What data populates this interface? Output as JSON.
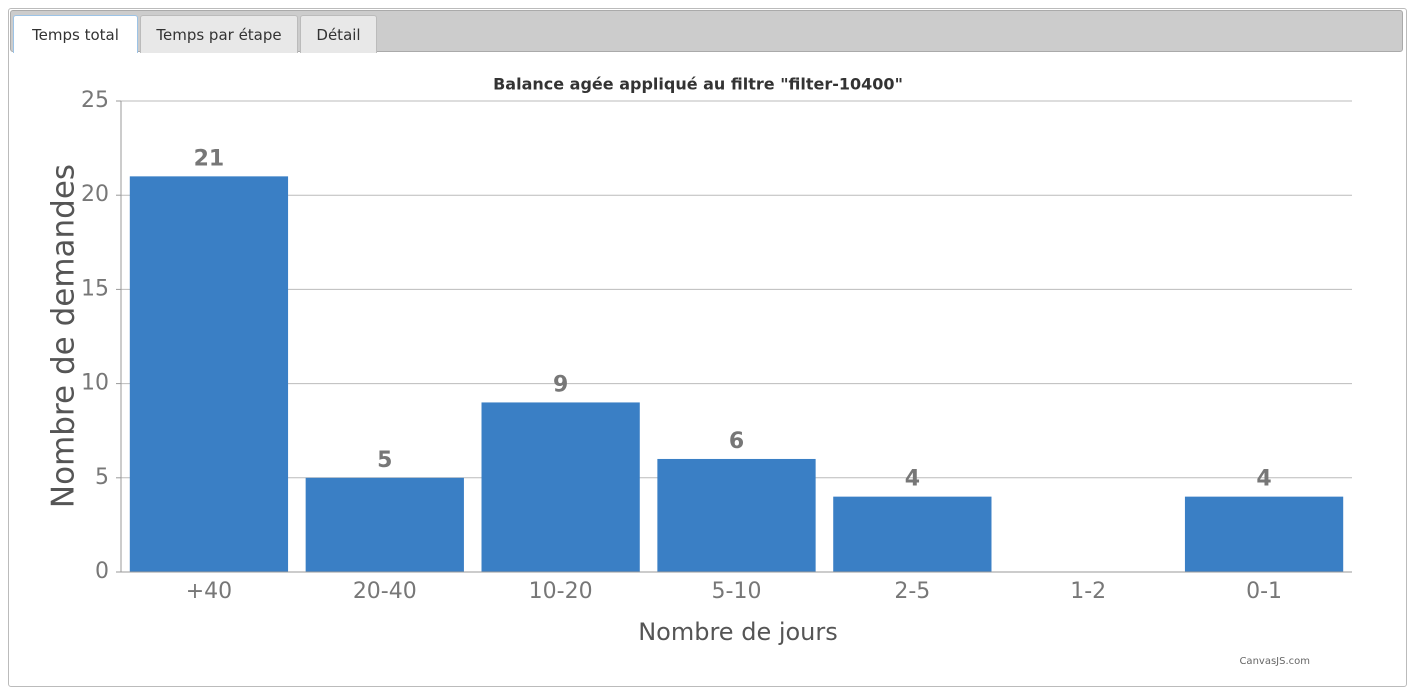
{
  "tabs": [
    "Temps total",
    "Temps par étape",
    "Détail"
  ],
  "chart_data": {
    "type": "bar",
    "title": "Balance agée appliqué au filtre \"filter-10400\"",
    "x_label": "Nombre de jours",
    "y_label": "Nombre de demandes",
    "categories": [
      "+40",
      "20-40",
      "10-20",
      "5-10",
      "2-5",
      "1-2",
      "0-1"
    ],
    "values": [
      21,
      5,
      9,
      6,
      4,
      null,
      4
    ],
    "color": "#3a7fc5",
    "ylim": [
      0,
      25
    ],
    "yticks": [
      0,
      5,
      10,
      15,
      20,
      25
    ],
    "grid": true,
    "credit": "CanvasJS.com"
  }
}
